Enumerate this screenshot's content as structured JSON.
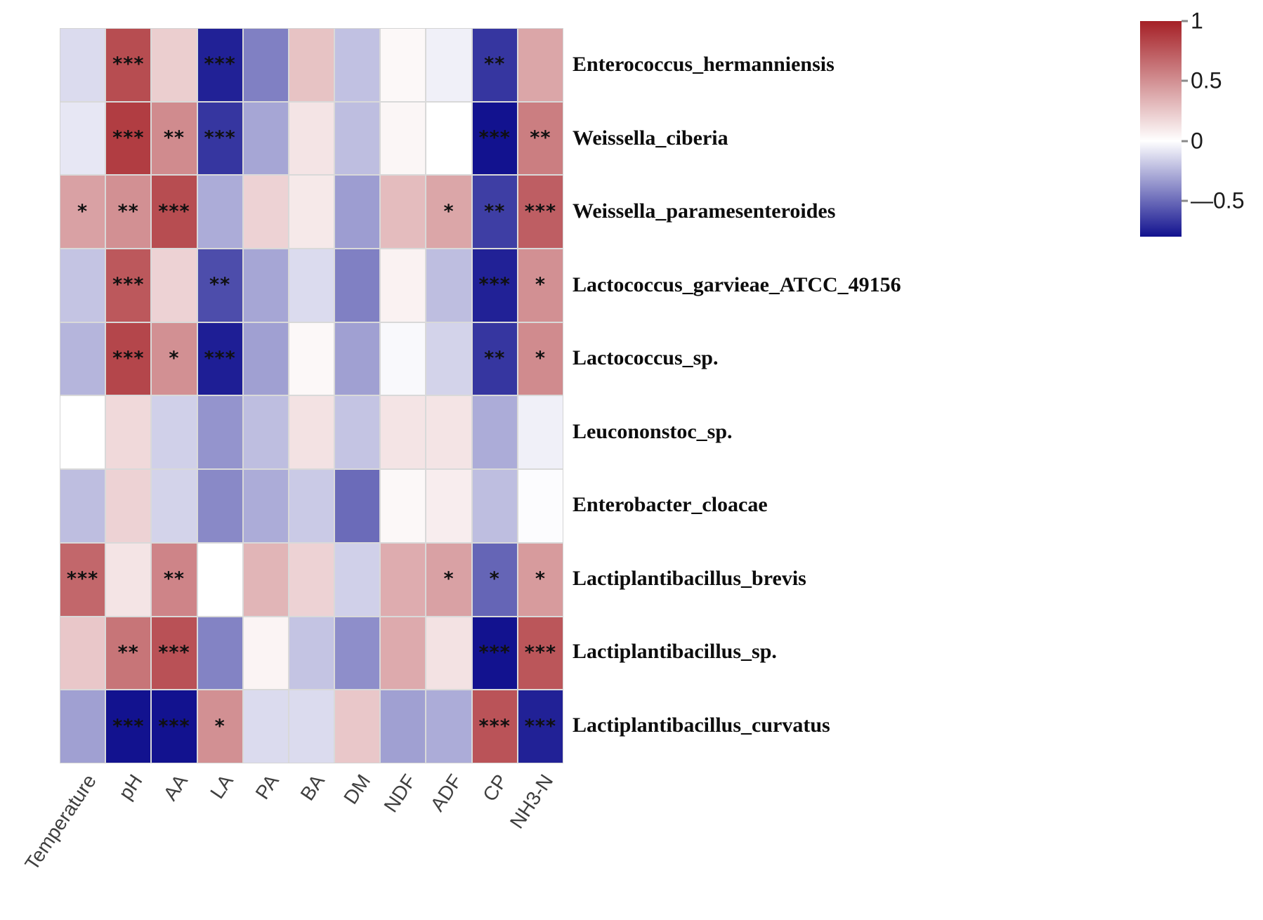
{
  "figure": {
    "background": "#ffffff",
    "description": "Correlation heatmap between bacterial species and silage fermentation parameters"
  },
  "chart_data": {
    "type": "heatmap",
    "title": "",
    "xlabel": "",
    "ylabel": "",
    "grid": false,
    "columns": [
      "Temperature",
      "pH",
      "AA",
      "LA",
      "PA",
      "BA",
      "DM",
      "NDF",
      "ADF",
      "CP",
      "NH3-N"
    ],
    "rows": [
      {
        "name": "Enterococcus_hermanniensis",
        "values": [
          -0.12,
          0.8,
          0.22,
          -0.75,
          -0.43,
          0.27,
          -0.21,
          0.03,
          -0.05,
          -0.68,
          0.4
        ],
        "sig": [
          "",
          "***",
          "",
          "***",
          "",
          "",
          "",
          "",
          "",
          "**",
          ""
        ]
      },
      {
        "name": "Weissella_ciberia",
        "values": [
          -0.08,
          0.87,
          0.52,
          -0.68,
          -0.3,
          0.12,
          -0.22,
          0.04,
          0.0,
          -0.8,
          0.58
        ],
        "sig": [
          "",
          "***",
          "**",
          "***",
          "",
          "",
          "",
          "",
          "",
          "***",
          "**"
        ]
      },
      {
        "name": "Weissella_paramesenteroides",
        "values": [
          0.42,
          0.5,
          0.8,
          -0.28,
          0.2,
          0.1,
          -0.33,
          0.3,
          0.4,
          -0.65,
          0.72
        ],
        "sig": [
          "*",
          "**",
          "***",
          "",
          "",
          "",
          "",
          "",
          "*",
          "**",
          "***"
        ]
      },
      {
        "name": "Lactococcus_garvieae_ATCC_49156",
        "values": [
          -0.2,
          0.75,
          0.2,
          -0.6,
          -0.3,
          -0.12,
          -0.43,
          0.06,
          -0.22,
          -0.75,
          0.5
        ],
        "sig": [
          "",
          "***",
          "",
          "**",
          "",
          "",
          "",
          "",
          "",
          "***",
          "*"
        ]
      },
      {
        "name": "Lactococcus_sp.",
        "values": [
          -0.25,
          0.83,
          0.5,
          -0.76,
          -0.32,
          0.03,
          -0.32,
          -0.02,
          -0.15,
          -0.68,
          0.52
        ],
        "sig": [
          "",
          "***",
          "*",
          "***",
          "",
          "",
          "",
          "",
          "",
          "**",
          "*"
        ]
      },
      {
        "name": "Leucononstoc_sp.",
        "values": [
          0.0,
          0.17,
          -0.16,
          -0.36,
          -0.22,
          0.13,
          -0.2,
          0.12,
          0.12,
          -0.28,
          -0.05
        ],
        "sig": [
          "",
          "",
          "",
          "",
          "",
          "",
          "",
          "",
          "",
          "",
          ""
        ]
      },
      {
        "name": "Enterobacter_cloacae",
        "values": [
          -0.22,
          0.2,
          -0.15,
          -0.4,
          -0.28,
          -0.18,
          -0.5,
          0.03,
          0.08,
          -0.22,
          -0.01
        ],
        "sig": [
          "",
          "",
          "",
          "",
          "",
          "",
          "",
          "",
          "",
          "",
          ""
        ]
      },
      {
        "name": "Lactiplantibacillus_brevis",
        "values": [
          0.68,
          0.12,
          0.55,
          0.0,
          0.33,
          0.2,
          -0.16,
          0.37,
          0.42,
          -0.52,
          0.45
        ],
        "sig": [
          "***",
          "",
          "**",
          "",
          "",
          "",
          "",
          "",
          "*",
          "*",
          "*"
        ]
      },
      {
        "name": "Lactiplantibacillus_sp.",
        "values": [
          0.25,
          0.62,
          0.78,
          -0.42,
          0.05,
          -0.2,
          -0.38,
          0.38,
          0.13,
          -0.8,
          0.76
        ],
        "sig": [
          "",
          "**",
          "***",
          "",
          "",
          "",
          "",
          "",
          "",
          "***",
          "***"
        ]
      },
      {
        "name": "Lactiplantibacillus_curvatus",
        "values": [
          -0.32,
          -0.8,
          -0.8,
          0.5,
          -0.12,
          -0.12,
          0.25,
          -0.32,
          -0.28,
          0.77,
          -0.75
        ],
        "sig": [
          "",
          "***",
          "***",
          "*",
          "",
          "",
          "",
          "",
          "",
          "***",
          "***"
        ]
      }
    ],
    "colorbar": {
      "position": "top-right",
      "max": 1,
      "min": -0.8,
      "color_max": "#a52026",
      "color_zero": "#ffffff",
      "color_min": "#12128f",
      "ticks": [
        {
          "label": "1",
          "value": 1
        },
        {
          "label": "0.5",
          "value": 0.5
        },
        {
          "label": "0",
          "value": 0
        },
        {
          "label": "—0.5",
          "value": -0.5
        }
      ]
    },
    "significance_symbols": [
      "*",
      "**",
      "***"
    ]
  }
}
